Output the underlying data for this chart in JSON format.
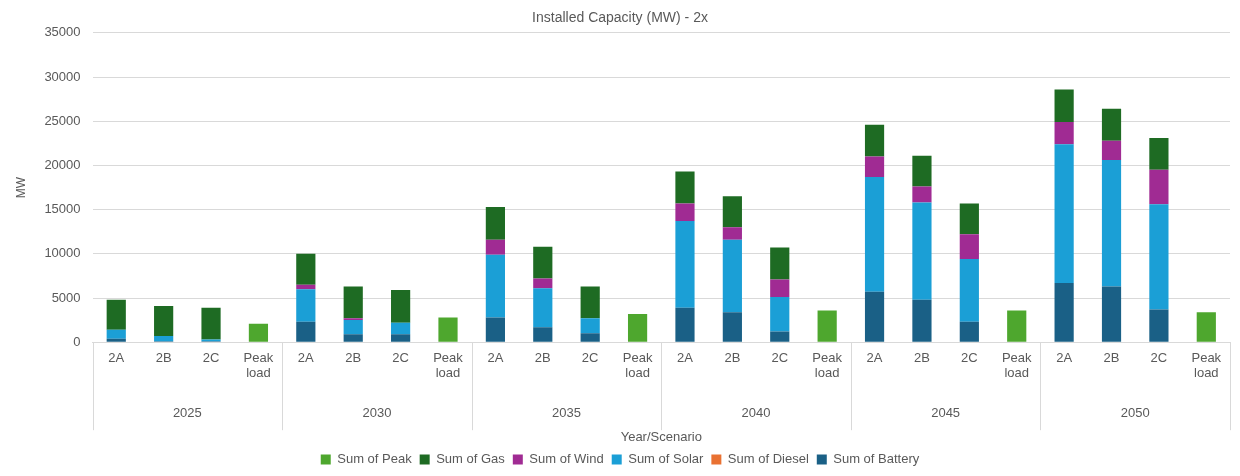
{
  "chart_data": {
    "type": "bar",
    "title": "Installed Capacity (MW) - 2x",
    "xlabel": "Year/Scenario",
    "ylabel": "MW",
    "categories": [
      "2A",
      "2B",
      "2C",
      "Peak load",
      "2A",
      "2B",
      "2C",
      "Peak load",
      "2A",
      "2B",
      "2C",
      "Peak load",
      "2A",
      "2B",
      "2C",
      "Peak load",
      "2A",
      "2B",
      "2C",
      "Peak load",
      "2A",
      "2B",
      "2C",
      "Peak load"
    ],
    "annotations": [
      "2025",
      "2030",
      "2035",
      "2040",
      "2045",
      "2050"
    ],
    "stacked": true,
    "series": [
      {
        "name": "Sum of Battery",
        "color": "#1a6086",
        "values": [
          400,
          100,
          100,
          null,
          2300,
          900,
          900,
          null,
          2800,
          1700,
          1000,
          null,
          3900,
          3400,
          1200,
          null,
          5700,
          4800,
          2300,
          null,
          6700,
          6300,
          3700,
          null
        ]
      },
      {
        "name": "Sum of Diesel",
        "color": "#e97132",
        "values": [
          0,
          0,
          0,
          null,
          0,
          0,
          0,
          null,
          0,
          0,
          0,
          null,
          0,
          0,
          0,
          null,
          0,
          0,
          0,
          null,
          0,
          0,
          0,
          null
        ]
      },
      {
        "name": "Sum of Solar",
        "color": "#1b9fd6",
        "values": [
          1000,
          600,
          200,
          null,
          3700,
          1600,
          1300,
          null,
          7100,
          4400,
          1700,
          null,
          9800,
          8200,
          3900,
          null,
          13000,
          11000,
          7100,
          null,
          15700,
          14300,
          11900,
          null
        ]
      },
      {
        "name": "Sum of Wind",
        "color": "#a02b93",
        "values": [
          0,
          0,
          0,
          null,
          500,
          200,
          0,
          null,
          1700,
          1100,
          0,
          null,
          2000,
          1400,
          2000,
          null,
          2300,
          1800,
          2800,
          null,
          2500,
          2200,
          3900,
          null
        ]
      },
      {
        "name": "Sum of Gas",
        "color": "#1e6b23",
        "values": [
          3400,
          3400,
          3600,
          null,
          3500,
          3600,
          3700,
          null,
          3700,
          3600,
          3600,
          null,
          3600,
          3500,
          3600,
          null,
          3600,
          3500,
          3500,
          null,
          3700,
          3600,
          3600,
          null
        ]
      },
      {
        "name": "Sum of Peak",
        "color": "#4ea72e",
        "values": [
          null,
          null,
          null,
          2100,
          null,
          null,
          null,
          2800,
          null,
          null,
          null,
          3200,
          null,
          null,
          null,
          3600,
          null,
          null,
          null,
          3600,
          null,
          null,
          null,
          3400
        ]
      }
    ],
    "ylim": [
      0,
      35000
    ],
    "yticks": [
      0,
      5000,
      10000,
      15000,
      20000,
      25000,
      30000,
      35000
    ],
    "grid": "y",
    "legend": "bottom"
  }
}
